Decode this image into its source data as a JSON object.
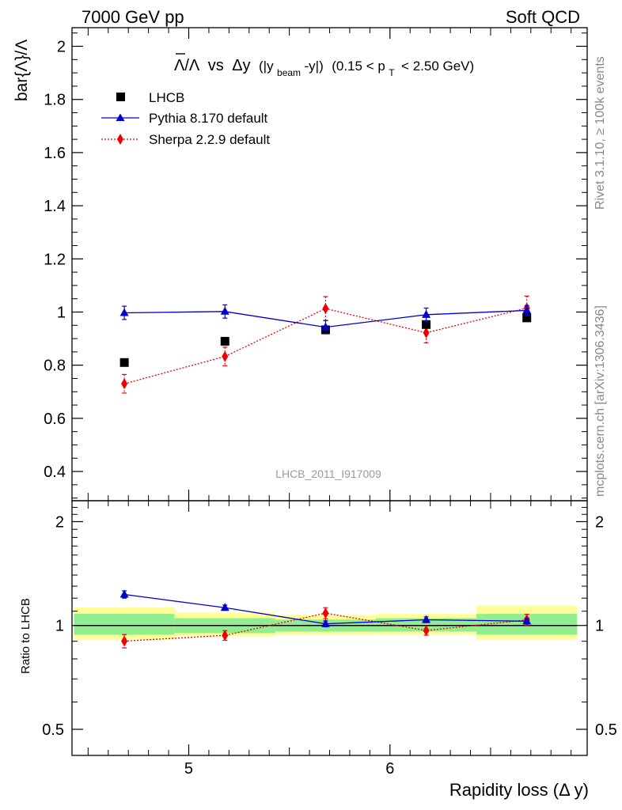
{
  "header": {
    "left": "7000 GeV pp",
    "right": "Soft QCD",
    "side_top": "Rivet 3.1.10, ≥ 100k events",
    "side_bottom": "mcplots.cern.ch [arXiv:1306.3436]"
  },
  "chart_data": [
    {
      "type": "scatter",
      "title": "bar{Λ}/Λ vs Δy (|y_beam-y|) (0.15 < p_T < 2.50 GeV)",
      "title_parts": {
        "ratio": "Λ/Λ",
        "vs": "vs",
        "dy": "Δy",
        "yexpr_open": "(|y",
        "yexpr_sub": "beam",
        "yexpr_close": "-y|)",
        "pt_open": "(0.15 < p",
        "pt_sub": "T",
        "pt_close": "< 2.50 GeV)"
      },
      "ylabel": "bar{Λ}/Λ",
      "xlim": [
        4.42,
        6.98
      ],
      "ylim": [
        0.29,
        2.07
      ],
      "yticks": [
        0.4,
        0.6,
        0.8,
        1,
        1.2,
        1.4,
        1.6,
        1.8,
        2
      ],
      "ytick_labels": [
        "0.4",
        "0.6",
        "0.8",
        "1",
        "1.2",
        "1.4",
        "1.6",
        "1.8",
        "2"
      ],
      "watermark": "LHCB_2011_I917009",
      "legend": [
        "LHCB",
        "Pythia 8.170 default",
        "Sherpa 2.2.9 default"
      ],
      "series": [
        {
          "name": "LHCB",
          "color": "#000000",
          "marker": "square",
          "x": [
            4.68,
            5.18,
            5.68,
            6.18,
            6.68
          ],
          "y": [
            0.81,
            0.89,
            0.933,
            0.953,
            0.978
          ],
          "yerr": [
            0.0,
            0.0,
            0.0,
            0.0,
            0.0
          ]
        },
        {
          "name": "Pythia 8.170 default",
          "color": "#0000cc",
          "marker": "triangle",
          "x": [
            4.68,
            5.18,
            5.68,
            6.18,
            6.68
          ],
          "y": [
            0.997,
            1.002,
            0.943,
            0.99,
            1.006
          ],
          "yerr": [
            0.025,
            0.025,
            0.025,
            0.025,
            0.018
          ]
        },
        {
          "name": "Sherpa 2.2.9 default",
          "color": "#ee0000",
          "marker": "diamond",
          "x": [
            4.68,
            5.18,
            5.68,
            6.18,
            6.68
          ],
          "y": [
            0.73,
            0.833,
            1.013,
            0.922,
            1.015
          ],
          "yerr": [
            0.035,
            0.035,
            0.045,
            0.038,
            0.045
          ]
        }
      ]
    },
    {
      "type": "scatter",
      "ylabel": "Ratio to LHCB",
      "xlabel": "Rapidity loss (Δ y)",
      "xlim": [
        4.42,
        6.98
      ],
      "ylim": [
        0.42,
        2.3
      ],
      "yscale": "log",
      "yticks": [
        0.5,
        1,
        2
      ],
      "ytick_labels": [
        "0.5",
        "1",
        "2"
      ],
      "xticks": [
        5,
        6
      ],
      "xtick_labels": [
        "5",
        "6"
      ],
      "bands": {
        "edges": [
          4.43,
          4.93,
          5.43,
          5.93,
          6.43,
          6.93
        ],
        "yellow": [
          [
            0.91,
            1.13
          ],
          [
            0.93,
            1.09
          ],
          [
            0.94,
            1.07
          ],
          [
            0.94,
            1.08
          ],
          [
            0.91,
            1.14
          ]
        ],
        "green": [
          [
            0.94,
            1.08
          ],
          [
            0.95,
            1.05
          ],
          [
            0.96,
            1.04
          ],
          [
            0.96,
            1.05
          ],
          [
            0.94,
            1.08
          ]
        ]
      },
      "series": [
        {
          "name": "Pythia 8.170 default",
          "color": "#0000cc",
          "marker": "triangle",
          "x": [
            4.68,
            5.18,
            5.68,
            6.18,
            6.68
          ],
          "y": [
            1.23,
            1.126,
            1.011,
            1.039,
            1.029
          ],
          "yerr": [
            0.03,
            0.02,
            0.02,
            0.02,
            0.02
          ]
        },
        {
          "name": "Sherpa 2.2.9 default",
          "color": "#ee0000",
          "marker": "diamond",
          "x": [
            4.68,
            5.18,
            5.68,
            6.18,
            6.68
          ],
          "y": [
            0.901,
            0.936,
            1.086,
            0.967,
            1.038
          ],
          "yerr": [
            0.04,
            0.03,
            0.04,
            0.03,
            0.04
          ]
        }
      ]
    }
  ]
}
